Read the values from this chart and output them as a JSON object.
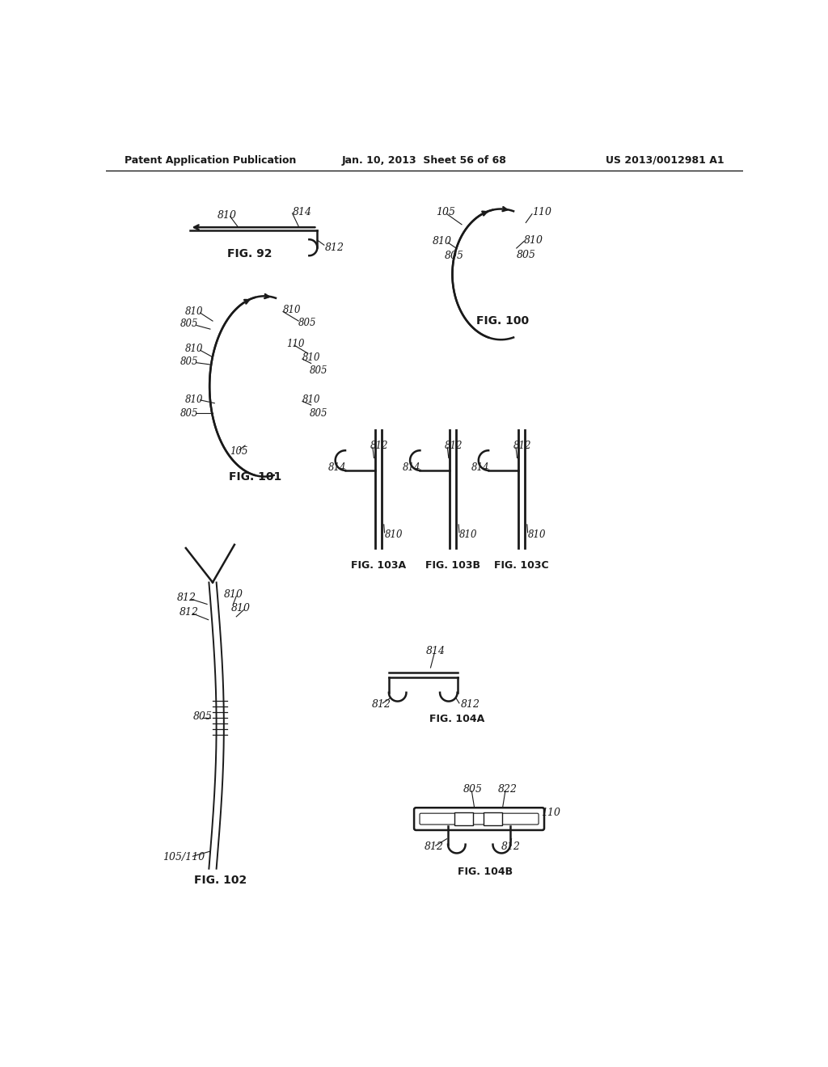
{
  "title_left": "Patent Application Publication",
  "title_mid": "Jan. 10, 2013  Sheet 56 of 68",
  "title_right": "US 2013/0012981 A1",
  "background": "#ffffff",
  "line_color": "#1a1a1a",
  "text_color": "#1a1a1a"
}
